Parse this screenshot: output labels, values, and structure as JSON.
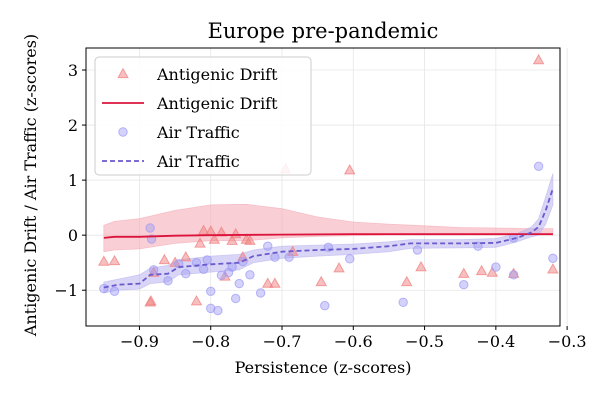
{
  "chart_data": {
    "type": "scatter",
    "title": "Europe pre-pandemic",
    "xlabel": "Persistence (z-scores)",
    "ylabel": "Antigenic Drift / Air Traffic (z-scores)",
    "xlim": [
      -0.975,
      -0.31
    ],
    "ylim": [
      -1.65,
      3.4
    ],
    "xticks": [
      -0.9,
      -0.8,
      -0.7,
      -0.6,
      -0.5,
      -0.4,
      -0.3
    ],
    "xtick_labels": [
      "−0.9",
      "−0.8",
      "−0.7",
      "−0.6",
      "−0.5",
      "−0.4",
      "−0.3"
    ],
    "yticks": [
      -1,
      0,
      1,
      2,
      3
    ],
    "ytick_labels": [
      "−1",
      "0",
      "1",
      "2",
      "3"
    ],
    "grid": true,
    "legend_position": "top-left",
    "colors": {
      "drift": "#dc143c",
      "drift_marker": "#f08080",
      "drift_band": "#f4a7b3",
      "traffic": "#6a5acd",
      "traffic_marker": "#9f9cf5",
      "traffic_band": "#b8b2ee"
    },
    "legend": [
      {
        "label": "Antigenic Drift",
        "kind": "triangle",
        "series": "drift"
      },
      {
        "label": "Antigenic Drift",
        "kind": "solid-line",
        "series": "drift"
      },
      {
        "label": "Air Traffic",
        "kind": "circle",
        "series": "traffic"
      },
      {
        "label": "Air Traffic",
        "kind": "dashed-line",
        "series": "traffic"
      }
    ],
    "drift_points": [
      [
        -0.95,
        -0.48
      ],
      [
        -0.935,
        -0.47
      ],
      [
        -0.885,
        -1.22
      ],
      [
        -0.884,
        -1.2
      ],
      [
        -0.88,
        -0.68
      ],
      [
        -0.865,
        -0.45
      ],
      [
        -0.85,
        -0.5
      ],
      [
        -0.835,
        -0.4
      ],
      [
        -0.82,
        -1.2
      ],
      [
        -0.815,
        -0.15
      ],
      [
        -0.81,
        0.08
      ],
      [
        -0.8,
        0.07
      ],
      [
        -0.795,
        -0.08
      ],
      [
        -0.785,
        0.05
      ],
      [
        -0.78,
        -0.75
      ],
      [
        -0.77,
        -0.1
      ],
      [
        -0.765,
        0.02
      ],
      [
        -0.755,
        -0.4
      ],
      [
        -0.75,
        -0.08
      ],
      [
        -0.745,
        -0.1
      ],
      [
        -0.72,
        -0.88
      ],
      [
        -0.71,
        -0.88
      ],
      [
        -0.695,
        1.2
      ],
      [
        -0.685,
        -0.3
      ],
      [
        -0.645,
        -0.85
      ],
      [
        -0.62,
        -0.6
      ],
      [
        -0.605,
        1.18
      ],
      [
        -0.525,
        -0.85
      ],
      [
        -0.505,
        -0.58
      ],
      [
        -0.445,
        -0.7
      ],
      [
        -0.42,
        -0.65
      ],
      [
        -0.405,
        -0.68
      ],
      [
        -0.375,
        -0.7
      ],
      [
        -0.34,
        3.18
      ],
      [
        -0.32,
        -0.62
      ]
    ],
    "traffic_points": [
      [
        -0.95,
        -0.97
      ],
      [
        -0.935,
        -1.02
      ],
      [
        -0.885,
        0.13
      ],
      [
        -0.883,
        -0.07
      ],
      [
        -0.88,
        -0.63
      ],
      [
        -0.86,
        -0.83
      ],
      [
        -0.845,
        -0.52
      ],
      [
        -0.835,
        -0.7
      ],
      [
        -0.82,
        -0.5
      ],
      [
        -0.81,
        -0.62
      ],
      [
        -0.805,
        -0.45
      ],
      [
        -0.8,
        -1.02
      ],
      [
        -0.8,
        -1.33
      ],
      [
        -0.79,
        -1.37
      ],
      [
        -0.785,
        -0.73
      ],
      [
        -0.775,
        -0.68
      ],
      [
        -0.77,
        -0.58
      ],
      [
        -0.765,
        -1.15
      ],
      [
        -0.76,
        -0.88
      ],
      [
        -0.755,
        -0.48
      ],
      [
        -0.745,
        -0.72
      ],
      [
        -0.73,
        -1.05
      ],
      [
        -0.72,
        -0.2
      ],
      [
        -0.71,
        -0.4
      ],
      [
        -0.69,
        -0.4
      ],
      [
        -0.64,
        -1.28
      ],
      [
        -0.635,
        -0.22
      ],
      [
        -0.605,
        -0.43
      ],
      [
        -0.53,
        -1.22
      ],
      [
        -0.51,
        -0.27
      ],
      [
        -0.445,
        -0.9
      ],
      [
        -0.425,
        -0.2
      ],
      [
        -0.4,
        -0.58
      ],
      [
        -0.375,
        -0.72
      ],
      [
        -0.375,
        -0.05
      ],
      [
        -0.34,
        1.25
      ],
      [
        -0.32,
        -0.42
      ]
    ],
    "drift_line": [
      [
        -0.95,
        -0.05
      ],
      [
        -0.935,
        -0.03
      ],
      [
        -0.9,
        -0.03
      ],
      [
        -0.85,
        -0.01
      ],
      [
        -0.8,
        0.0
      ],
      [
        -0.7,
        0.01
      ],
      [
        -0.6,
        0.02
      ],
      [
        -0.5,
        0.02
      ],
      [
        -0.4,
        0.02
      ],
      [
        -0.32,
        0.02
      ]
    ],
    "drift_band": [
      [
        -0.95,
        -0.3,
        0.18
      ],
      [
        -0.935,
        -0.27,
        0.25
      ],
      [
        -0.9,
        -0.25,
        0.3
      ],
      [
        -0.85,
        -0.15,
        0.45
      ],
      [
        -0.8,
        -0.1,
        0.55
      ],
      [
        -0.75,
        -0.1,
        0.56
      ],
      [
        -0.7,
        -0.05,
        0.48
      ],
      [
        -0.65,
        -0.02,
        0.33
      ],
      [
        -0.6,
        -0.01,
        0.24
      ],
      [
        -0.55,
        0.0,
        0.2
      ],
      [
        -0.5,
        0.0,
        0.17
      ],
      [
        -0.45,
        0.0,
        0.14
      ],
      [
        -0.4,
        0.0,
        0.13
      ],
      [
        -0.35,
        0.0,
        0.12
      ],
      [
        -0.32,
        0.0,
        0.12
      ]
    ],
    "traffic_line": [
      [
        -0.95,
        -0.95
      ],
      [
        -0.93,
        -0.9
      ],
      [
        -0.9,
        -0.88
      ],
      [
        -0.885,
        -0.72
      ],
      [
        -0.86,
        -0.7
      ],
      [
        -0.845,
        -0.58
      ],
      [
        -0.8,
        -0.53
      ],
      [
        -0.76,
        -0.5
      ],
      [
        -0.74,
        -0.38
      ],
      [
        -0.7,
        -0.3
      ],
      [
        -0.65,
        -0.27
      ],
      [
        -0.6,
        -0.25
      ],
      [
        -0.55,
        -0.2
      ],
      [
        -0.52,
        -0.15
      ],
      [
        -0.45,
        -0.15
      ],
      [
        -0.4,
        -0.14
      ],
      [
        -0.37,
        -0.05
      ],
      [
        -0.35,
        0.05
      ],
      [
        -0.34,
        0.15
      ],
      [
        -0.33,
        0.45
      ],
      [
        -0.32,
        0.85
      ]
    ],
    "traffic_band": [
      [
        -0.95,
        -1.05,
        -0.85
      ],
      [
        -0.93,
        -1.0,
        -0.8
      ],
      [
        -0.9,
        -0.98,
        -0.72
      ],
      [
        -0.885,
        -0.88,
        -0.6
      ],
      [
        -0.86,
        -0.85,
        -0.55
      ],
      [
        -0.845,
        -0.72,
        -0.45
      ],
      [
        -0.8,
        -0.67,
        -0.38
      ],
      [
        -0.76,
        -0.63,
        -0.35
      ],
      [
        -0.74,
        -0.5,
        -0.27
      ],
      [
        -0.7,
        -0.42,
        -0.2
      ],
      [
        -0.65,
        -0.38,
        -0.18
      ],
      [
        -0.6,
        -0.35,
        -0.16
      ],
      [
        -0.55,
        -0.3,
        -0.12
      ],
      [
        -0.52,
        -0.24,
        -0.08
      ],
      [
        -0.45,
        -0.23,
        -0.08
      ],
      [
        -0.4,
        -0.22,
        -0.06
      ],
      [
        -0.37,
        -0.12,
        0.03
      ],
      [
        -0.35,
        -0.03,
        0.15
      ],
      [
        -0.34,
        0.0,
        0.3
      ],
      [
        -0.33,
        0.2,
        0.7
      ],
      [
        -0.32,
        0.55,
        1.12
      ]
    ]
  }
}
